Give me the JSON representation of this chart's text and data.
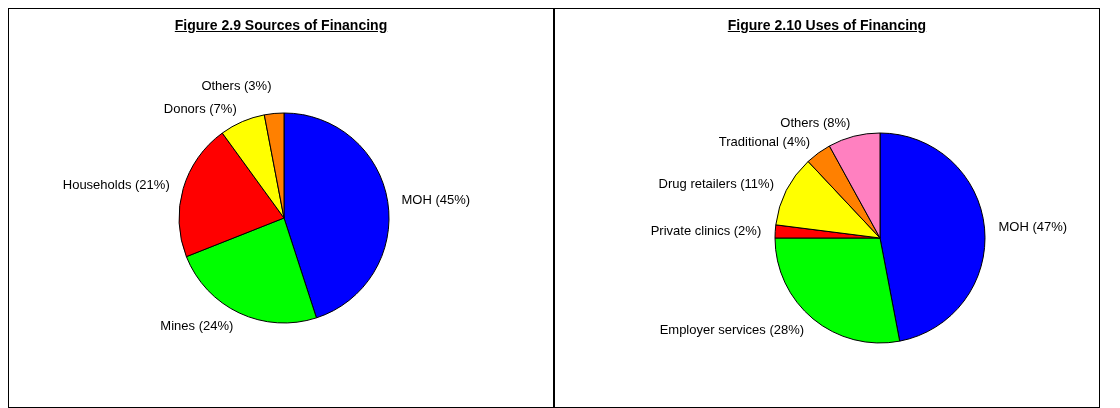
{
  "chart_data": [
    {
      "type": "pie",
      "title": "Figure 2.9 Sources of Financing",
      "categories": [
        "MOH (45%)",
        "Mines (24%)",
        "Households (21%)",
        "Donors (7%)",
        "Others (3%)"
      ],
      "values": [
        45,
        24,
        21,
        7,
        3
      ],
      "colors": [
        "#0000ff",
        "#00ff00",
        "#ff0000",
        "#ffff00",
        "#ff8000"
      ]
    },
    {
      "type": "pie",
      "title": "Figure 2.10 Uses of Financing",
      "categories": [
        "MOH (47%)",
        "Employer services (28%)",
        "Private clinics (2%)",
        "Drug retailers (11%)",
        "Traditional (4%)",
        "Others (8%)"
      ],
      "values": [
        47,
        28,
        2,
        11,
        4,
        8
      ],
      "colors": [
        "#0000ff",
        "#00ff00",
        "#ff0000",
        "#ffff00",
        "#ff8000",
        "#ff80c0"
      ]
    }
  ]
}
